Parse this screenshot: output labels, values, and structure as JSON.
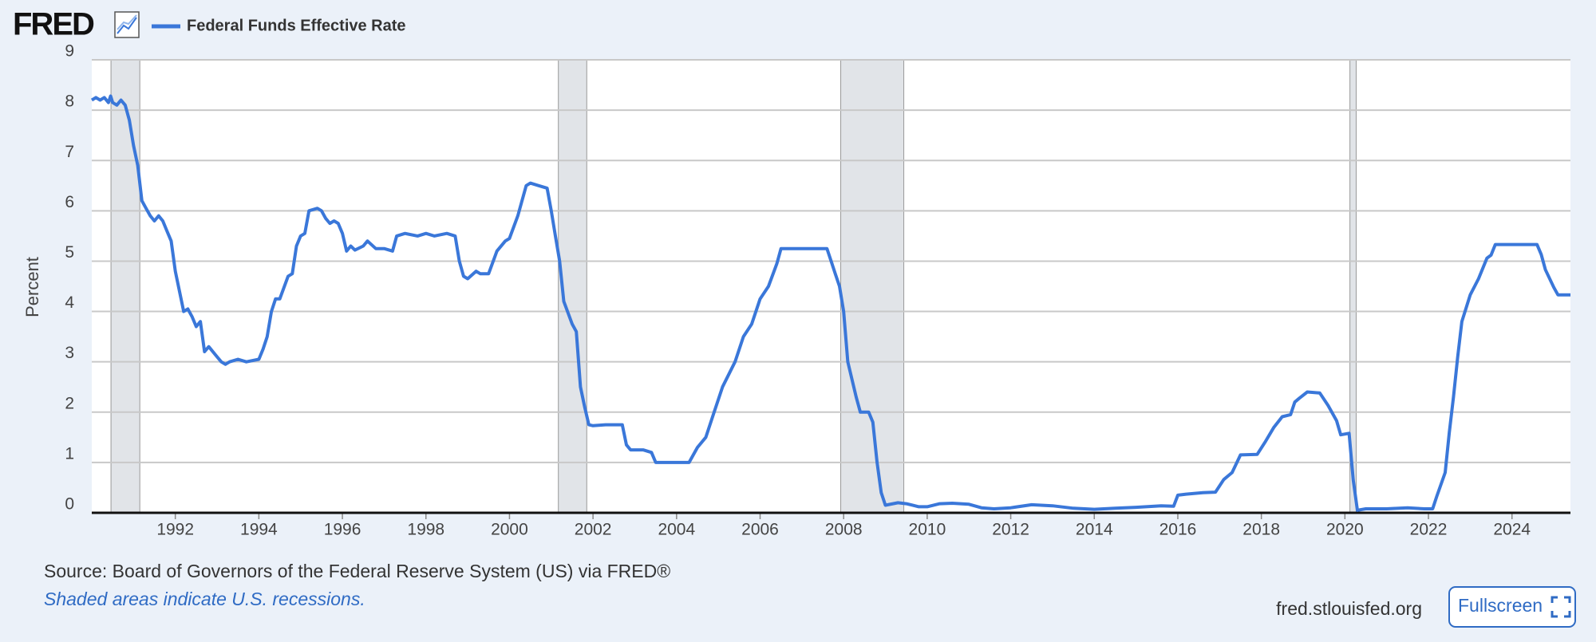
{
  "header": {
    "logo": "FRED"
  },
  "chart_data": {
    "type": "line",
    "x": [
      1990.0,
      1990.1,
      1990.2,
      1990.3,
      1990.4,
      1990.45,
      1990.5,
      1990.6,
      1990.7,
      1990.8,
      1990.9,
      1991.0,
      1991.1,
      1991.2,
      1991.3,
      1991.4,
      1991.5,
      1991.6,
      1991.7,
      1991.8,
      1991.9,
      1992.0,
      1992.2,
      1992.3,
      1992.4,
      1992.5,
      1992.6,
      1992.7,
      1992.8,
      1993.0,
      1993.1,
      1993.2,
      1993.3,
      1993.5,
      1993.7,
      1994.0,
      1994.1,
      1994.2,
      1994.3,
      1994.4,
      1994.5,
      1994.7,
      1994.8,
      1994.9,
      1995.0,
      1995.1,
      1995.2,
      1995.4,
      1995.5,
      1995.6,
      1995.7,
      1995.8,
      1995.9,
      1996.0,
      1996.1,
      1996.2,
      1996.3,
      1996.5,
      1996.6,
      1996.8,
      1997.0,
      1997.2,
      1997.3,
      1997.5,
      1997.8,
      1998.0,
      1998.2,
      1998.5,
      1998.7,
      1998.8,
      1998.9,
      1999.0,
      1999.2,
      1999.3,
      1999.5,
      1999.7,
      1999.9,
      2000.0,
      2000.2,
      2000.4,
      2000.5,
      2000.7,
      2000.9,
      2001.0,
      2001.1,
      2001.2,
      2001.3,
      2001.5,
      2001.6,
      2001.7,
      2001.8,
      2001.9,
      2002.0,
      2002.3,
      2002.7,
      2002.8,
      2002.9,
      2003.2,
      2003.4,
      2003.5,
      2003.8,
      2004.0,
      2004.3,
      2004.5,
      2004.7,
      2004.9,
      2005.1,
      2005.4,
      2005.6,
      2005.8,
      2006.0,
      2006.2,
      2006.4,
      2006.5,
      2006.8,
      2007.0,
      2007.3,
      2007.6,
      2007.7,
      2007.8,
      2007.9,
      2008.0,
      2008.1,
      2008.3,
      2008.4,
      2008.6,
      2008.7,
      2008.8,
      2008.9,
      2009.0,
      2009.3,
      2009.5,
      2009.8,
      2010.0,
      2010.3,
      2010.6,
      2011.0,
      2011.3,
      2011.6,
      2012.0,
      2012.5,
      2013.0,
      2013.5,
      2014.0,
      2014.5,
      2015.0,
      2015.6,
      2015.9,
      2016.0,
      2016.2,
      2016.6,
      2016.9,
      2017.1,
      2017.3,
      2017.5,
      2017.9,
      2018.1,
      2018.3,
      2018.5,
      2018.7,
      2018.8,
      2018.9,
      2019.1,
      2019.4,
      2019.6,
      2019.8,
      2019.9,
      2020.1,
      2020.2,
      2020.3,
      2020.5,
      2021.0,
      2021.5,
      2021.9,
      2022.1,
      2022.2,
      2022.4,
      2022.5,
      2022.6,
      2022.7,
      2022.8,
      2023.0,
      2023.2,
      2023.4,
      2023.5,
      2023.6,
      2024.0,
      2024.6,
      2024.7,
      2024.8,
      2025.0,
      2025.1,
      2025.4
    ],
    "series": [
      {
        "name": "Federal Funds Effective Rate",
        "color": "#3a77d9",
        "values": [
          8.2,
          8.25,
          8.2,
          8.25,
          8.15,
          8.28,
          8.15,
          8.1,
          8.2,
          8.1,
          7.8,
          7.3,
          6.9,
          6.2,
          6.05,
          5.9,
          5.8,
          5.9,
          5.8,
          5.6,
          5.4,
          4.8,
          4.0,
          4.05,
          3.9,
          3.7,
          3.8,
          3.2,
          3.3,
          3.1,
          3.0,
          2.95,
          3.0,
          3.05,
          3.0,
          3.05,
          3.25,
          3.5,
          4.0,
          4.25,
          4.25,
          4.7,
          4.75,
          5.3,
          5.5,
          5.55,
          6.0,
          6.05,
          6.0,
          5.85,
          5.75,
          5.8,
          5.75,
          5.55,
          5.2,
          5.3,
          5.22,
          5.3,
          5.4,
          5.25,
          5.25,
          5.2,
          5.5,
          5.55,
          5.5,
          5.55,
          5.5,
          5.55,
          5.5,
          5.0,
          4.7,
          4.65,
          4.8,
          4.75,
          4.75,
          5.2,
          5.4,
          5.45,
          5.9,
          6.5,
          6.55,
          6.5,
          6.45,
          6.0,
          5.5,
          5.0,
          4.2,
          3.75,
          3.6,
          2.5,
          2.1,
          1.75,
          1.73,
          1.75,
          1.75,
          1.35,
          1.25,
          1.25,
          1.2,
          1.0,
          1.0,
          1.0,
          1.0,
          1.3,
          1.5,
          2.0,
          2.5,
          3.0,
          3.5,
          3.75,
          4.25,
          4.5,
          4.95,
          5.25,
          5.25,
          5.25,
          5.25,
          5.25,
          5.0,
          4.75,
          4.5,
          4.0,
          3.0,
          2.3,
          2.0,
          2.0,
          1.8,
          1.0,
          0.4,
          0.15,
          0.2,
          0.18,
          0.12,
          0.12,
          0.18,
          0.19,
          0.17,
          0.1,
          0.08,
          0.1,
          0.16,
          0.14,
          0.09,
          0.07,
          0.09,
          0.11,
          0.14,
          0.13,
          0.35,
          0.37,
          0.4,
          0.41,
          0.66,
          0.8,
          1.15,
          1.16,
          1.42,
          1.7,
          1.91,
          1.95,
          2.2,
          2.27,
          2.4,
          2.38,
          2.13,
          1.83,
          1.55,
          1.58,
          0.65,
          0.05,
          0.08,
          0.08,
          0.1,
          0.08,
          0.08,
          0.33,
          0.8,
          1.6,
          2.3,
          3.1,
          3.8,
          4.33,
          4.65,
          5.06,
          5.12,
          5.33,
          5.33,
          5.33,
          5.13,
          4.83,
          4.48,
          4.33,
          4.33
        ]
      }
    ],
    "recessions": [
      [
        1990.46,
        1991.15
      ],
      [
        2001.17,
        2001.85
      ],
      [
        2007.93,
        2009.44
      ],
      [
        2020.12,
        2020.27
      ]
    ],
    "xlim": [
      1990,
      2025.4
    ],
    "ylim": [
      0,
      9
    ],
    "xticks": [
      1992,
      1994,
      1996,
      1998,
      2000,
      2002,
      2004,
      2006,
      2008,
      2010,
      2012,
      2014,
      2016,
      2018,
      2020,
      2022,
      2024
    ],
    "yticks": [
      0,
      1,
      2,
      3,
      4,
      5,
      6,
      7,
      8,
      9
    ],
    "ylabel": "Percent",
    "grid": true
  },
  "footer": {
    "source": "Source: Board of Governors of the Federal Reserve System (US) via FRED®",
    "note": "Shaded areas indicate U.S. recessions.",
    "site": "fred.stlouisfed.org",
    "button": "Fullscreen"
  }
}
